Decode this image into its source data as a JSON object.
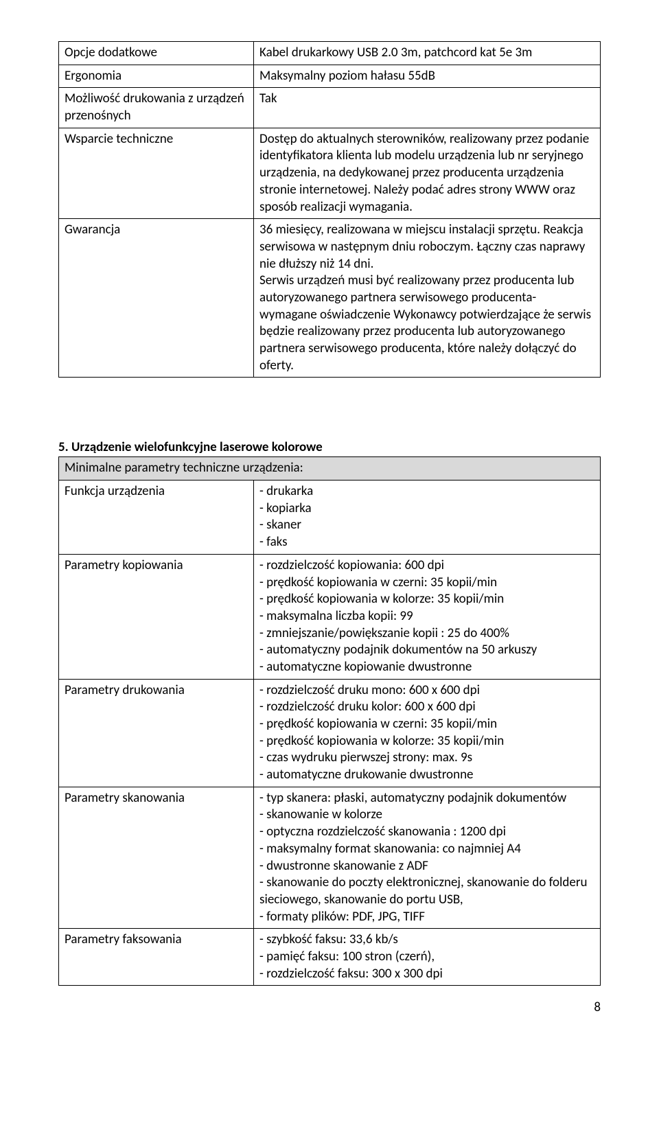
{
  "table1": {
    "rows": [
      {
        "label": "Opcje dodatkowe",
        "value": "Kabel drukarkowy USB 2.0 3m, patchcord kat 5e 3m"
      },
      {
        "label": "Ergonomia",
        "value": "Maksymalny poziom hałasu 55dB"
      },
      {
        "label": "Możliwość drukowania z urządzeń przenośnych",
        "value": "Tak"
      },
      {
        "label": "Wsparcie techniczne",
        "value": "Dostęp do aktualnych sterowników, realizowany przez podanie identyfikatora klienta lub modelu urządzenia lub nr seryjnego urządzenia, na dedykowanej przez producenta urządzenia stronie internetowej. Należy podać adres strony WWW oraz sposób realizacji wymagania."
      },
      {
        "label": "Gwarancja",
        "value": "36 miesięcy, realizowana w miejscu instalacji sprzętu. Reakcja serwisowa w następnym dniu roboczym. Łączny czas naprawy nie dłuższy niż  14 dni.\nSerwis urządzeń musi być realizowany przez producenta lub autoryzowanego partnera serwisowego producenta- wymagane oświadczenie Wykonawcy potwierdzające że serwis będzie realizowany przez producenta lub autoryzowanego partnera  serwisowego producenta, które należy dołączyć do oferty."
      }
    ]
  },
  "section2": {
    "title": "5. Urządzenie wielofunkcyjne laserowe kolorowe",
    "subtitle": "Minimalne parametry techniczne urządzenia:",
    "rows": [
      {
        "label": "Funkcja urządzenia",
        "value": "- drukarka\n- kopiarka\n- skaner\n- faks"
      },
      {
        "label": "Parametry kopiowania",
        "value": "- rozdzielczość kopiowania: 600 dpi\n- prędkość kopiowania w czerni: 35 kopii/min\n- prędkość kopiowania w kolorze: 35 kopii/min\n- maksymalna liczba kopii: 99\n- zmniejszanie/powiększanie kopii : 25 do 400%\n- automatyczny podajnik dokumentów na 50 arkuszy\n- automatyczne kopiowanie dwustronne"
      },
      {
        "label": "Parametry drukowania",
        "value": "- rozdzielczość druku mono: 600 x 600 dpi\n- rozdzielczość druku kolor: 600 x 600 dpi\n- prędkość kopiowania w czerni: 35 kopii/min\n- prędkość kopiowania w kolorze: 35 kopii/min\n- czas wydruku pierwszej strony: max. 9s\n- automatyczne drukowanie dwustronne"
      },
      {
        "label": "Parametry skanowania",
        "value": "- typ skanera: płaski, automatyczny podajnik dokumentów\n- skanowanie w kolorze\n- optyczna rozdzielczość skanowania :  1200 dpi\n- maksymalny format skanowania: co najmniej A4\n- dwustronne skanowanie z ADF\n- skanowanie do poczty elektronicznej, skanowanie do folderu sieciowego, skanowanie do portu USB,\n- formaty plików: PDF, JPG, TIFF"
      },
      {
        "label": "Parametry faksowania",
        "value": "- szybkość faksu: 33,6 kb/s\n- pamięć  faksu: 100 stron (czerń),\n- rozdzielczość faksu: 300 x 300 dpi"
      }
    ]
  },
  "pageNumber": "8"
}
